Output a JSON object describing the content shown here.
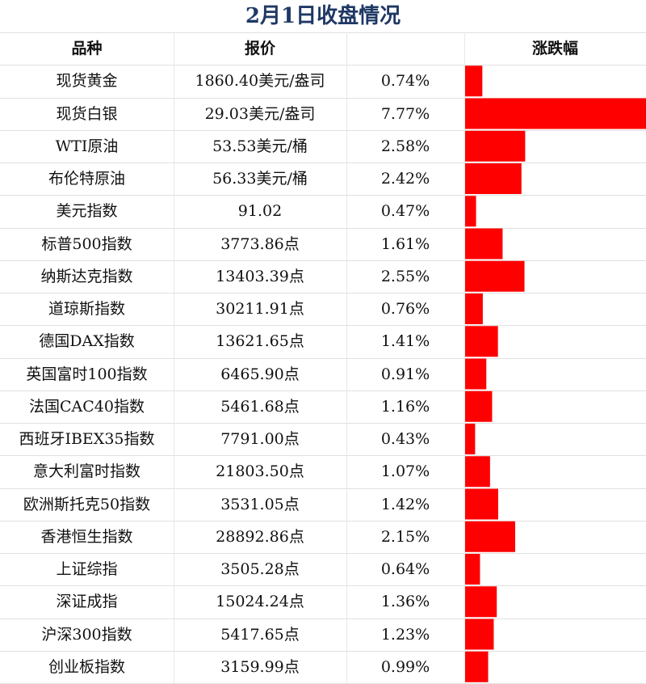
{
  "title": "2月1日收盘情况",
  "headers": {
    "name": "品种",
    "price": "报价",
    "change": "涨跌幅"
  },
  "bar_color": "#ff0000",
  "rows": [
    {
      "name": "现货黄金",
      "price": "1860.40美元/盎司",
      "change": "0.74%"
    },
    {
      "name": "现货白银",
      "price": "29.03美元/盎司",
      "change": "7.77%"
    },
    {
      "name": "WTI原油",
      "price": "53.53美元/桶",
      "change": "2.58%"
    },
    {
      "name": "布伦特原油",
      "price": "56.33美元/桶",
      "change": "2.42%"
    },
    {
      "name": "美元指数",
      "price": "91.02",
      "change": "0.47%"
    },
    {
      "name": "标普500指数",
      "price": "3773.86点",
      "change": "1.61%"
    },
    {
      "name": "纳斯达克指数",
      "price": "13403.39点",
      "change": "2.55%"
    },
    {
      "name": "道琼斯指数",
      "price": "30211.91点",
      "change": "0.76%"
    },
    {
      "name": "德国DAX指数",
      "price": "13621.65点",
      "change": "1.41%"
    },
    {
      "name": "英国富时100指数",
      "price": "6465.90点",
      "change": "0.91%"
    },
    {
      "name": "法国CAC40指数",
      "price": "5461.68点",
      "change": "1.16%"
    },
    {
      "name": "西班牙IBEX35指数",
      "price": "7791.00点",
      "change": "0.43%"
    },
    {
      "name": "意大利富时指数",
      "price": "21803.50点",
      "change": "1.07%"
    },
    {
      "name": "欧洲斯托克50指数",
      "price": "3531.05点",
      "change": "1.42%"
    },
    {
      "name": "香港恒生指数",
      "price": "28892.86点",
      "change": "2.15%"
    },
    {
      "name": "上证综指",
      "price": "3505.28点",
      "change": "0.64%"
    },
    {
      "name": "深证成指",
      "price": "15024.24点",
      "change": "1.36%"
    },
    {
      "name": "沪深300指数",
      "price": "5417.65点",
      "change": "1.23%"
    },
    {
      "name": "创业板指数",
      "price": "3159.99点",
      "change": "0.99%"
    }
  ],
  "chart_data": {
    "type": "bar",
    "categories": [
      "现货黄金",
      "现货白银",
      "WTI原油",
      "布伦特原油",
      "美元指数",
      "标普500指数",
      "纳斯达克指数",
      "道琼斯指数",
      "德国DAX指数",
      "英国富时100指数",
      "法国CAC40指数",
      "西班牙IBEX35指数",
      "意大利富时指数",
      "欧洲斯托克50指数",
      "香港恒生指数",
      "上证综指",
      "深证成指",
      "沪深300指数",
      "创业板指数"
    ],
    "values": [
      0.74,
      7.77,
      2.58,
      2.42,
      0.47,
      1.61,
      2.55,
      0.76,
      1.41,
      0.91,
      1.16,
      0.43,
      1.07,
      1.42,
      2.15,
      0.64,
      1.36,
      1.23,
      0.99
    ],
    "title": "2月1日收盘情况",
    "xlabel": "",
    "ylabel": "涨跌幅",
    "orientation": "horizontal",
    "unit": "%"
  }
}
